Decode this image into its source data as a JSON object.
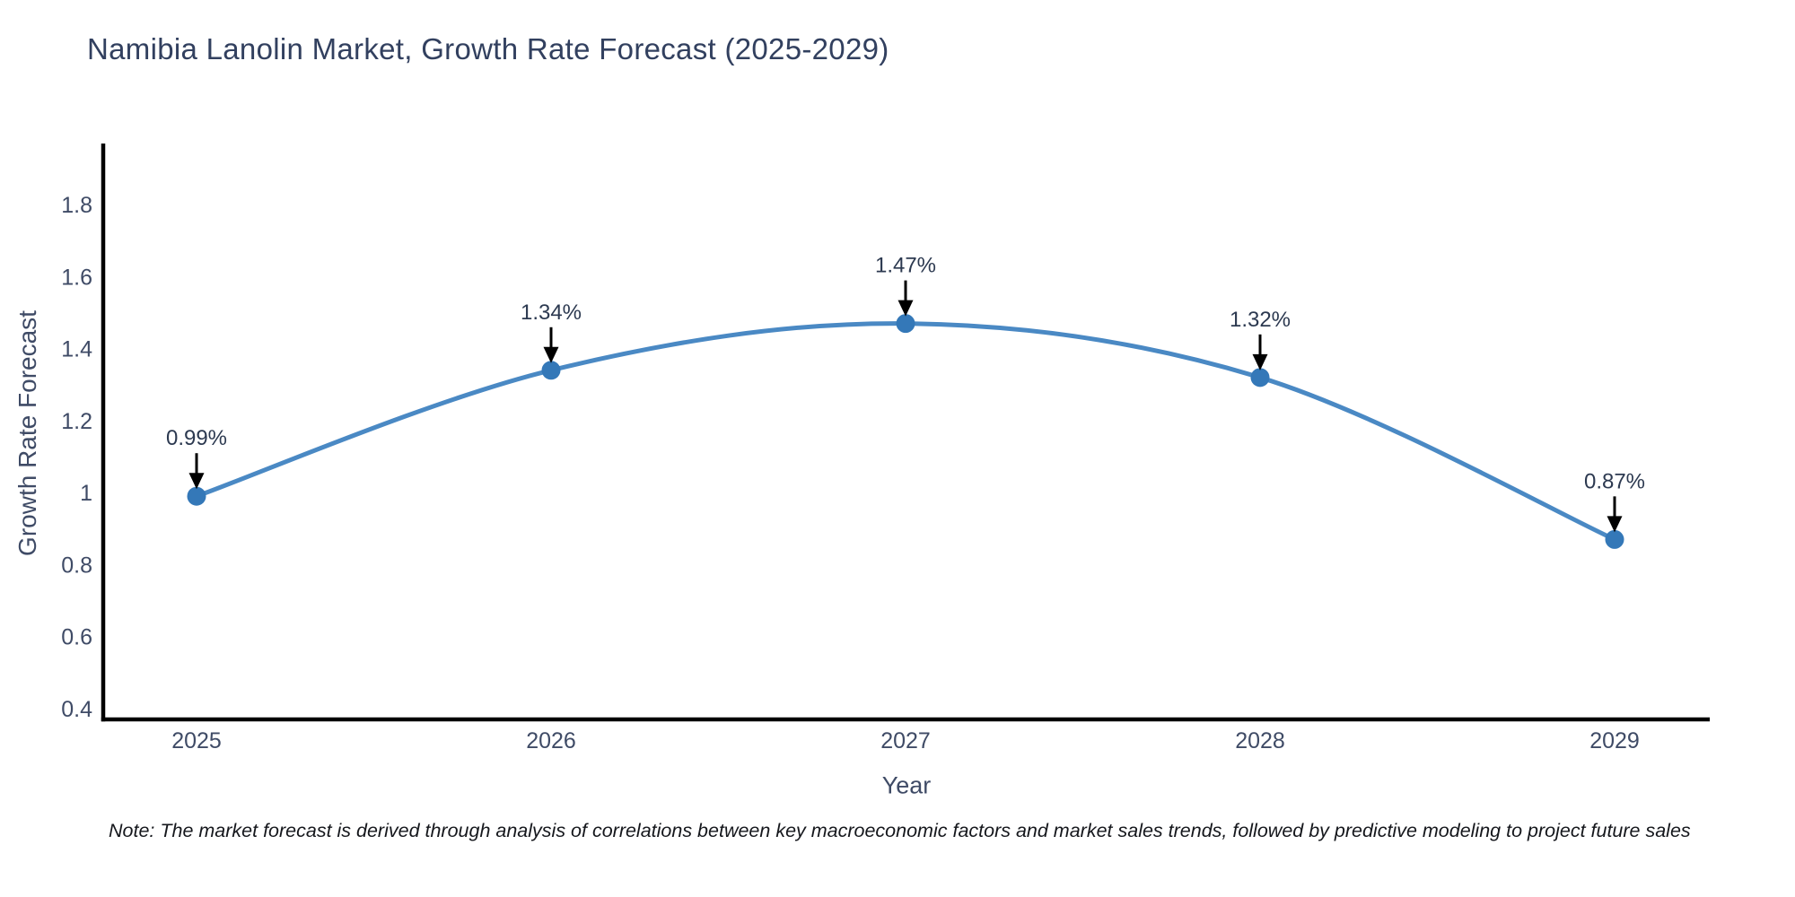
{
  "header": {
    "title": "Namibia Lanolin Market, Growth Rate Forecast (2025-2029)"
  },
  "footnote": {
    "text": "Note: The market forecast is derived through analysis of correlations between key macroeconomic factors and market sales trends, followed by predictive modeling to project future sales"
  },
  "chart_data": {
    "type": "line",
    "title": "Namibia Lanolin Market, Growth Rate Forecast (2025-2029)",
    "xlabel": "Year",
    "ylabel": "Growth Rate Forecast",
    "categories": [
      "2025",
      "2026",
      "2027",
      "2028",
      "2029"
    ],
    "values": [
      0.99,
      1.34,
      1.47,
      1.32,
      0.87
    ],
    "point_labels": [
      "0.99%",
      "1.34%",
      "1.47%",
      "1.32%",
      "0.87%"
    ],
    "series_name": "Growth Rate Forecast (%)",
    "yticks": [
      0.4,
      0.6,
      0.8,
      1,
      1.2,
      1.4,
      1.6,
      1.8
    ],
    "ylim": [
      0.37,
      1.97
    ],
    "curve": "spline",
    "grid": false,
    "legend": "none",
    "annotations": "black arrows pointing down to each data point with percent labels above",
    "colors": {
      "line": "#4a89c4",
      "marker": "#3478b8",
      "axis": "#000000",
      "tick_text": "#3f4b66",
      "title_text": "#32405f",
      "annotation_text": "#2c3950",
      "arrow": "#000000",
      "background": "#ffffff"
    }
  }
}
